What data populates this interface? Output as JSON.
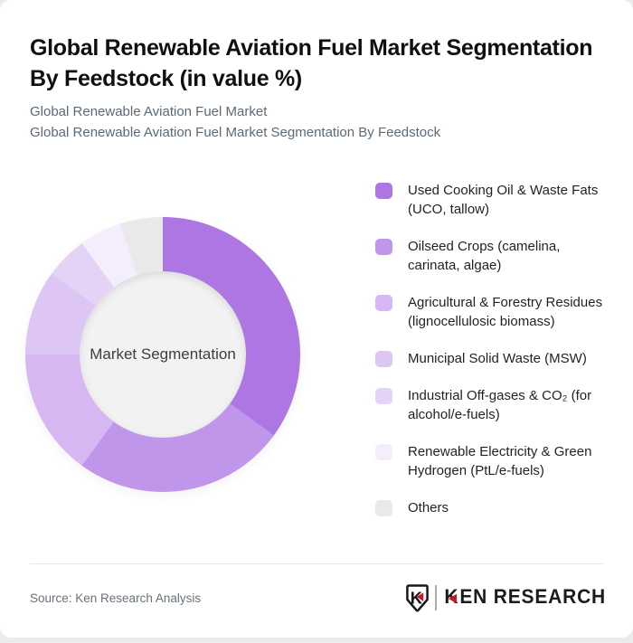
{
  "header": {
    "title": "Global Renewable Aviation Fuel Market Segmentation By Feedstock (in value %)",
    "title_line1": "Global Renewable Aviation Fuel Market Segmentation",
    "title_line2": "By Feedstock (in value %)",
    "subtitle1": "Global Renewable Aviation Fuel Market",
    "subtitle2": "Global Renewable Aviation Fuel Market Segmentation By Feedstock"
  },
  "chart_data": {
    "type": "pie",
    "subtype": "donut",
    "title": "Global Renewable Aviation Fuel Market Segmentation By Feedstock (in value %)",
    "unit": "value %",
    "center_label": "Market Segmentation",
    "legend_position": "right",
    "start_angle_deg": 0,
    "direction": "clockwise",
    "segments": [
      {
        "label": "Used Cooking Oil & Waste Fats (UCO, tallow)",
        "value": 35,
        "color": "#ad76e3"
      },
      {
        "label": "Oilseed Crops (camelina, carinata, algae)",
        "value": 25,
        "color": "#c096ea"
      },
      {
        "label": "Agricultural & Forestry Residues (lignocellulosic biomass)",
        "value": 15,
        "color": "#d6b7f1"
      },
      {
        "label": "Municipal Solid Waste (MSW)",
        "value": 10,
        "color": "#ddc5f4"
      },
      {
        "label": "Industrial Off-gases & CO₂ (for alcohol/e-fuels)",
        "value": 5,
        "color": "#e4d3f7"
      },
      {
        "label": "Renewable Electricity & Green Hydrogen (PtL/e-fuels)",
        "value": 5,
        "color": "#f4edfb"
      },
      {
        "label": "Others",
        "value": 5,
        "color": "#e9e9ea"
      }
    ],
    "inner_circle_color": "#f2f2f3"
  },
  "footer": {
    "source": "Source: Ken Research Analysis",
    "logo": {
      "badge_letter": "K",
      "wordmark_k": "K",
      "wordmark_rest": "EN RESEARCH",
      "full_name": "KEN RESEARCH",
      "accent_color": "#c4161c"
    }
  }
}
